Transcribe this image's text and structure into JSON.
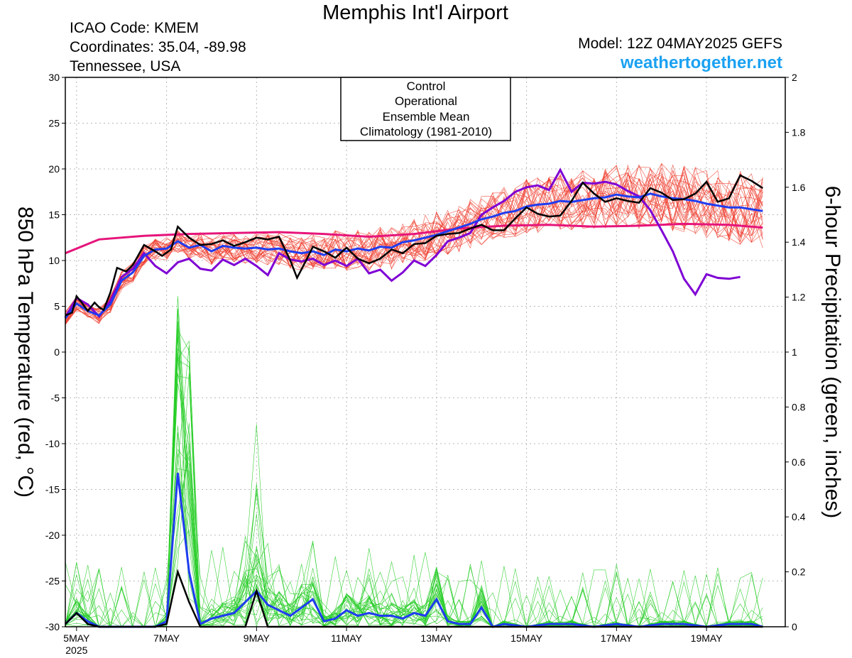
{
  "header": {
    "title": "Memphis Int'l Airport",
    "icao": "ICAO Code: KMEM",
    "coords": "Coordinates: 35.04, -89.98",
    "region": "Tennessee, USA",
    "model": "Model: 12Z 04MAY2025 GEFS",
    "site": "weathertogether.net"
  },
  "colors": {
    "control": "#000000",
    "operational": "#7f00d4",
    "ensemble_mean": "#1f3cf0",
    "climatology": "#e6157a",
    "temp_members": "#ef3b2c",
    "precip_members": "#22cc22"
  },
  "chart_data": {
    "type": "line",
    "title": "Memphis Int'l Airport",
    "ylabel": "850 hPa Temperature (red, °C)",
    "ylabel_right": "6-hour Precipitation (green, inches)",
    "ylim": [
      -30,
      30
    ],
    "ylim_right": [
      0,
      2
    ],
    "y_ticks": [
      "30",
      "25",
      "20",
      "15",
      "10",
      "5",
      "0",
      "-5",
      "-10",
      "-15",
      "-20",
      "-25",
      "-30"
    ],
    "y_ticks_right": [
      "2",
      "1.8",
      "1.6",
      "1.4",
      "1.2",
      "1",
      "0.8",
      "0.6",
      "0.4",
      "0.2",
      "0"
    ],
    "x_unit": "days from 00Z 5 May 2025",
    "xlim": [
      -0.25,
      15.75
    ],
    "x_ticks": [
      {
        "x": 0,
        "label": "5MAY",
        "sub": "2025"
      },
      {
        "x": 2,
        "label": "7MAY"
      },
      {
        "x": 4,
        "label": "9MAY"
      },
      {
        "x": 6,
        "label": "11MAY"
      },
      {
        "x": 8,
        "label": "13MAY"
      },
      {
        "x": 10,
        "label": "15MAY"
      },
      {
        "x": 12,
        "label": "17MAY"
      },
      {
        "x": 14,
        "label": "19MAY"
      }
    ],
    "grid": true,
    "legend": {
      "position": "top-center",
      "entries": [
        {
          "label": "Control",
          "color": "#000000"
        },
        {
          "label": "Operational",
          "color": "#7f00d4"
        },
        {
          "label": "Ensemble Mean",
          "color": "#1f3cf0"
        },
        {
          "label": "Climatology (1981-2010)",
          "color": "#e6157a"
        }
      ]
    },
    "temperature": {
      "control": [
        [
          -0.25,
          4.0
        ],
        [
          -0.1,
          4.3
        ],
        [
          0,
          6.1
        ],
        [
          0.1,
          5.5
        ],
        [
          0.25,
          4.5
        ],
        [
          0.4,
          5.4
        ],
        [
          0.5,
          4.9
        ],
        [
          0.6,
          4.6
        ],
        [
          0.75,
          6.5
        ],
        [
          0.9,
          9.2
        ],
        [
          1.1,
          8.8
        ],
        [
          1.25,
          9.5
        ],
        [
          1.5,
          11.7
        ],
        [
          1.75,
          11.0
        ],
        [
          1.9,
          10.5
        ],
        [
          2.1,
          11.2
        ],
        [
          2.25,
          13.7
        ],
        [
          2.5,
          12.5
        ],
        [
          2.75,
          11.7
        ],
        [
          3.0,
          11.8
        ],
        [
          3.25,
          12.2
        ],
        [
          3.5,
          11.6
        ],
        [
          3.75,
          12.0
        ],
        [
          4.0,
          12.5
        ],
        [
          4.25,
          12.3
        ],
        [
          4.5,
          12.6
        ],
        [
          4.75,
          10.0
        ],
        [
          4.9,
          8.1
        ],
        [
          5.1,
          10.0
        ],
        [
          5.25,
          11.5
        ],
        [
          5.5,
          11.0
        ],
        [
          5.75,
          10.3
        ],
        [
          6.0,
          11.4
        ],
        [
          6.25,
          10.2
        ],
        [
          6.5,
          9.7
        ],
        [
          6.75,
          10.2
        ],
        [
          7.0,
          11.2
        ],
        [
          7.25,
          10.8
        ],
        [
          7.5,
          11.8
        ],
        [
          7.75,
          11.9
        ],
        [
          8.0,
          12.7
        ],
        [
          8.25,
          12.9
        ],
        [
          8.5,
          13.0
        ],
        [
          8.75,
          13.5
        ],
        [
          9.0,
          13.9
        ],
        [
          9.25,
          13.3
        ],
        [
          9.5,
          13.3
        ],
        [
          9.75,
          14.6
        ],
        [
          10.0,
          15.8
        ],
        [
          10.25,
          15.1
        ],
        [
          10.5,
          14.8
        ],
        [
          10.75,
          14.9
        ],
        [
          11.0,
          16.5
        ],
        [
          11.25,
          18.5
        ],
        [
          11.5,
          17.3
        ],
        [
          11.75,
          16.4
        ],
        [
          12.0,
          16.8
        ],
        [
          12.25,
          16.5
        ],
        [
          12.5,
          16.3
        ],
        [
          12.75,
          17.9
        ],
        [
          13.0,
          17.4
        ],
        [
          13.25,
          16.6
        ],
        [
          13.5,
          16.7
        ],
        [
          13.75,
          17.3
        ],
        [
          14.0,
          18.6
        ],
        [
          14.25,
          16.4
        ],
        [
          14.5,
          16.8
        ],
        [
          14.75,
          19.3
        ],
        [
          15.0,
          18.7
        ],
        [
          15.25,
          17.9
        ]
      ],
      "operational": [
        [
          -0.25,
          3.8
        ],
        [
          0,
          5.9
        ],
        [
          0.25,
          5.2
        ],
        [
          0.5,
          3.9
        ],
        [
          0.75,
          5.6
        ],
        [
          1.0,
          8.2
        ],
        [
          1.25,
          9.1
        ],
        [
          1.5,
          10.8
        ],
        [
          1.75,
          9.4
        ],
        [
          2.0,
          8.6
        ],
        [
          2.25,
          9.8
        ],
        [
          2.5,
          10.2
        ],
        [
          2.75,
          9.1
        ],
        [
          3.0,
          8.9
        ],
        [
          3.25,
          10.1
        ],
        [
          3.5,
          9.5
        ],
        [
          3.75,
          10.2
        ],
        [
          4.0,
          9.4
        ],
        [
          4.25,
          8.4
        ],
        [
          4.5,
          10.8
        ],
        [
          4.75,
          10.1
        ],
        [
          5.0,
          9.9
        ],
        [
          5.25,
          10.2
        ],
        [
          5.5,
          9.5
        ],
        [
          5.75,
          10.0
        ],
        [
          6.0,
          9.4
        ],
        [
          6.25,
          10.2
        ],
        [
          6.5,
          8.6
        ],
        [
          6.75,
          9.0
        ],
        [
          7.0,
          7.8
        ],
        [
          7.25,
          8.7
        ],
        [
          7.5,
          10.0
        ],
        [
          7.75,
          9.4
        ],
        [
          8.0,
          10.6
        ],
        [
          8.25,
          12.1
        ],
        [
          8.5,
          12.5
        ],
        [
          8.75,
          13.0
        ],
        [
          9.0,
          15.0
        ],
        [
          9.25,
          15.8
        ],
        [
          9.5,
          16.5
        ],
        [
          9.75,
          17.5
        ],
        [
          10.0,
          18.0
        ],
        [
          10.25,
          18.2
        ],
        [
          10.5,
          17.7
        ],
        [
          10.75,
          19.9
        ],
        [
          11.0,
          17.5
        ],
        [
          11.25,
          18.5
        ],
        [
          11.5,
          18.4
        ],
        [
          11.75,
          18.6
        ],
        [
          12.0,
          18.3
        ],
        [
          12.25,
          17.6
        ],
        [
          12.5,
          17.0
        ],
        [
          12.75,
          15.5
        ],
        [
          13.0,
          13.3
        ],
        [
          13.25,
          11.0
        ],
        [
          13.5,
          8.0
        ],
        [
          13.75,
          6.3
        ],
        [
          14.0,
          8.5
        ],
        [
          14.25,
          8.1
        ],
        [
          14.5,
          8.0
        ],
        [
          14.75,
          8.2
        ]
      ],
      "ensemble_mean": [
        [
          -0.25,
          3.7
        ],
        [
          0,
          5.3
        ],
        [
          0.25,
          4.5
        ],
        [
          0.5,
          4.0
        ],
        [
          0.75,
          5.2
        ],
        [
          1.0,
          7.8
        ],
        [
          1.25,
          8.7
        ],
        [
          1.5,
          10.5
        ],
        [
          1.75,
          11.2
        ],
        [
          2.0,
          11.3
        ],
        [
          2.25,
          12.1
        ],
        [
          2.5,
          11.4
        ],
        [
          2.75,
          11.7
        ],
        [
          3.0,
          11.0
        ],
        [
          3.25,
          11.6
        ],
        [
          3.5,
          11.4
        ],
        [
          3.75,
          11.3
        ],
        [
          4.0,
          11.4
        ],
        [
          4.25,
          11.2
        ],
        [
          4.5,
          11.3
        ],
        [
          4.75,
          11.0
        ],
        [
          5.0,
          10.8
        ],
        [
          5.25,
          11.0
        ],
        [
          5.5,
          10.6
        ],
        [
          5.75,
          11.2
        ],
        [
          6.0,
          11.0
        ],
        [
          6.25,
          11.3
        ],
        [
          6.5,
          11.1
        ],
        [
          6.75,
          11.5
        ],
        [
          7.0,
          11.4
        ],
        [
          7.25,
          12.0
        ],
        [
          7.5,
          12.2
        ],
        [
          7.75,
          12.5
        ],
        [
          8.0,
          12.8
        ],
        [
          8.25,
          13.2
        ],
        [
          8.5,
          13.6
        ],
        [
          8.75,
          14.0
        ],
        [
          9.0,
          14.5
        ],
        [
          9.25,
          14.8
        ],
        [
          9.5,
          15.2
        ],
        [
          9.75,
          15.4
        ],
        [
          10.0,
          15.9
        ],
        [
          10.25,
          16.1
        ],
        [
          10.5,
          16.2
        ],
        [
          10.75,
          16.5
        ],
        [
          11.0,
          16.4
        ],
        [
          11.25,
          16.6
        ],
        [
          11.5,
          16.8
        ],
        [
          11.75,
          16.9
        ],
        [
          12.0,
          17.2
        ],
        [
          12.25,
          17.0
        ],
        [
          12.5,
          16.9
        ],
        [
          12.75,
          17.3
        ],
        [
          13.0,
          17.0
        ],
        [
          13.25,
          16.8
        ],
        [
          13.5,
          16.7
        ],
        [
          13.75,
          16.5
        ],
        [
          14.0,
          16.2
        ],
        [
          14.25,
          16.0
        ],
        [
          14.5,
          15.8
        ],
        [
          14.75,
          15.8
        ],
        [
          15.0,
          15.6
        ],
        [
          15.25,
          15.4
        ]
      ],
      "climatology": [
        [
          -0.25,
          10.8
        ],
        [
          0.5,
          12.3
        ],
        [
          1.5,
          12.7
        ],
        [
          2.5,
          12.9
        ],
        [
          3.5,
          13.0
        ],
        [
          4.5,
          13.1
        ],
        [
          5.5,
          12.9
        ],
        [
          6.5,
          12.6
        ],
        [
          7.5,
          12.9
        ],
        [
          8.5,
          13.5
        ],
        [
          9.5,
          13.8
        ],
        [
          10.5,
          13.9
        ],
        [
          11.5,
          13.7
        ],
        [
          12.5,
          13.8
        ],
        [
          13.5,
          14.0
        ],
        [
          14.5,
          13.9
        ],
        [
          15.25,
          13.6
        ]
      ]
    },
    "precipitation": {
      "control": [
        [
          -0.25,
          0.01
        ],
        [
          0,
          0.05
        ],
        [
          0.25,
          0.01
        ],
        [
          0.5,
          0.0
        ],
        [
          1.0,
          0.0
        ],
        [
          1.5,
          0.0
        ],
        [
          1.75,
          0.0
        ],
        [
          2.0,
          0.01
        ],
        [
          2.25,
          0.2
        ],
        [
          2.5,
          0.09
        ],
        [
          2.75,
          0.0
        ],
        [
          3.0,
          0.0
        ],
        [
          3.25,
          0.0
        ],
        [
          3.75,
          0.0
        ],
        [
          4.0,
          0.13
        ],
        [
          4.25,
          0.0
        ],
        [
          5.0,
          0.0
        ],
        [
          6.0,
          0.0
        ],
        [
          7.0,
          0.0
        ],
        [
          8.0,
          0.0
        ],
        [
          9.0,
          0.0
        ],
        [
          10.0,
          0.0
        ],
        [
          11.0,
          0.0
        ],
        [
          12.0,
          0.0
        ],
        [
          13.0,
          0.0
        ],
        [
          14.0,
          0.0
        ],
        [
          15.25,
          0.0
        ]
      ],
      "ensemble_mean": [
        [
          -0.25,
          0.01
        ],
        [
          0,
          0.05
        ],
        [
          0.25,
          0.02
        ],
        [
          0.5,
          0.0
        ],
        [
          1.0,
          0.0
        ],
        [
          1.5,
          0.0
        ],
        [
          1.75,
          0.0
        ],
        [
          2.0,
          0.02
        ],
        [
          2.25,
          0.56
        ],
        [
          2.5,
          0.2
        ],
        [
          2.75,
          0.01
        ],
        [
          3.0,
          0.03
        ],
        [
          3.25,
          0.04
        ],
        [
          3.5,
          0.05
        ],
        [
          3.75,
          0.09
        ],
        [
          4.0,
          0.13
        ],
        [
          4.25,
          0.08
        ],
        [
          4.5,
          0.06
        ],
        [
          4.75,
          0.04
        ],
        [
          5.0,
          0.07
        ],
        [
          5.25,
          0.1
        ],
        [
          5.5,
          0.02
        ],
        [
          5.75,
          0.03
        ],
        [
          6.0,
          0.06
        ],
        [
          6.25,
          0.04
        ],
        [
          6.5,
          0.05
        ],
        [
          6.75,
          0.04
        ],
        [
          7.0,
          0.04
        ],
        [
          7.25,
          0.03
        ],
        [
          7.5,
          0.05
        ],
        [
          7.75,
          0.04
        ],
        [
          8.0,
          0.1
        ],
        [
          8.25,
          0.02
        ],
        [
          8.5,
          0.01
        ],
        [
          8.75,
          0.01
        ],
        [
          9.0,
          0.07
        ],
        [
          9.25,
          0.0
        ],
        [
          9.5,
          0.01
        ],
        [
          10.0,
          0.0
        ],
        [
          10.5,
          0.01
        ],
        [
          11.0,
          0.01
        ],
        [
          11.5,
          0.0
        ],
        [
          12.0,
          0.01
        ],
        [
          12.5,
          0.0
        ],
        [
          13.0,
          0.01
        ],
        [
          13.5,
          0.01
        ],
        [
          14.0,
          0.0
        ],
        [
          14.5,
          0.01
        ],
        [
          15.0,
          0.01
        ],
        [
          15.25,
          0.0
        ]
      ]
    }
  }
}
